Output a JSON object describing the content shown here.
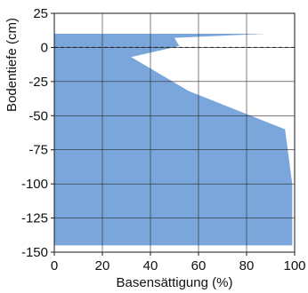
{
  "chart_data": {
    "type": "area",
    "title": "",
    "xlabel": "Basensättigung (%)",
    "ylabel": "Bodentiefe (cm)",
    "xlim": [
      0,
      100
    ],
    "ylim": [
      -150,
      25
    ],
    "x_ticks": [
      {
        "value": 0,
        "label": "0"
      },
      {
        "value": 20,
        "label": "20"
      },
      {
        "value": 40,
        "label": "40"
      },
      {
        "value": 60,
        "label": "60"
      },
      {
        "value": 80,
        "label": "80"
      },
      {
        "value": 100,
        "label": "100"
      }
    ],
    "y_ticks": [
      {
        "value": 25,
        "label": "25"
      },
      {
        "value": 0,
        "label": "0"
      },
      {
        "value": -25,
        "label": "-25"
      },
      {
        "value": -50,
        "label": "-50"
      },
      {
        "value": -75,
        "label": "-75"
      },
      {
        "value": -100,
        "label": "-100"
      },
      {
        "value": -125,
        "label": "-125"
      },
      {
        "value": -150,
        "label": "-150"
      }
    ],
    "grid": true,
    "fill_color": "#7aa6dc",
    "reference_line": {
      "y": 0,
      "style": "dashed",
      "color": "#222222"
    },
    "profile": [
      {
        "depth": 10,
        "value": 88
      },
      {
        "depth": 7,
        "value": 50
      },
      {
        "depth": 1,
        "value": 52
      },
      {
        "depth": -7,
        "value": 32
      },
      {
        "depth": -32,
        "value": 56
      },
      {
        "depth": -60,
        "value": 96
      },
      {
        "depth": -100,
        "value": 99
      },
      {
        "depth": -145,
        "value": 99
      }
    ]
  }
}
